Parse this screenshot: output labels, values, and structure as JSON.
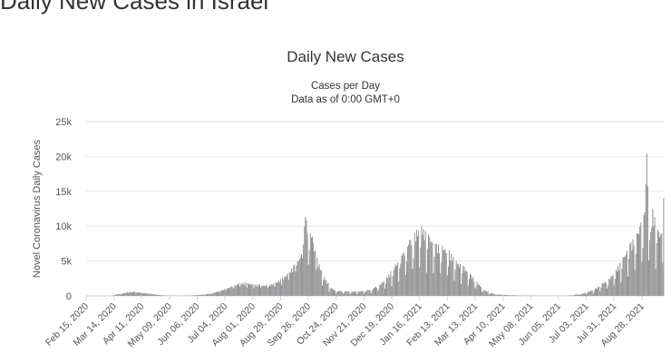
{
  "page": {
    "heading": "Daily New Cases in Israel"
  },
  "chart_data": {
    "type": "bar",
    "title": "Daily New Cases",
    "subtitle_line1": "Cases per Day",
    "subtitle_line2": "Data as of 0:00 GMT+0",
    "xlabel": "",
    "ylabel": "Novel Coronavirus Daily Cases",
    "ylim": [
      0,
      25000
    ],
    "y_ticks": [
      0,
      5000,
      10000,
      15000,
      20000,
      25000
    ],
    "y_tick_labels": [
      "0",
      "5k",
      "10k",
      "15k",
      "20k",
      "25k"
    ],
    "x_start": "2020-02-15",
    "x_end": "2021-09-20",
    "x_tick_labels": [
      "Feb 15, 2020",
      "Mar 14, 2020",
      "Apr 11, 2020",
      "May 09, 2020",
      "Jun 06, 2020",
      "Jul 04, 2020",
      "Aug 01, 2020",
      "Aug 29, 2020",
      "Sep 26, 2020",
      "Oct 24, 2020",
      "Nov 21, 2020",
      "Dec 19, 2020",
      "Jan 16, 2021",
      "Feb 13, 2021",
      "Mar 13, 2021",
      "Apr 10, 2021",
      "May 08, 2021",
      "Jun 05, 2021",
      "Jul 03, 2021",
      "Jul 31, 2021",
      "Aug 28, 2021"
    ],
    "series": [
      {
        "bar_color": "#8c8c8c",
        "points": [
          [
            "2020-03-14",
            150
          ],
          [
            "2020-03-21",
            300
          ],
          [
            "2020-03-28",
            550
          ],
          [
            "2020-04-04",
            600
          ],
          [
            "2020-04-11",
            450
          ],
          [
            "2020-04-18",
            350
          ],
          [
            "2020-04-25",
            200
          ],
          [
            "2020-05-02",
            80
          ],
          [
            "2020-05-16",
            20
          ],
          [
            "2020-05-30",
            60
          ],
          [
            "2020-06-06",
            120
          ],
          [
            "2020-06-13",
            200
          ],
          [
            "2020-06-20",
            350
          ],
          [
            "2020-06-27",
            650
          ],
          [
            "2020-07-04",
            1000
          ],
          [
            "2020-07-11",
            1400
          ],
          [
            "2020-07-18",
            1800
          ],
          [
            "2020-07-25",
            1900
          ],
          [
            "2020-08-01",
            1700
          ],
          [
            "2020-08-08",
            1600
          ],
          [
            "2020-08-15",
            1500
          ],
          [
            "2020-08-22",
            1800
          ],
          [
            "2020-08-29",
            2400
          ],
          [
            "2020-09-05",
            3200
          ],
          [
            "2020-09-12",
            4500
          ],
          [
            "2020-09-19",
            6000
          ],
          [
            "2020-09-23",
            11300
          ],
          [
            "2020-09-30",
            8500
          ],
          [
            "2020-10-03",
            6500
          ],
          [
            "2020-10-07",
            4500
          ],
          [
            "2020-10-14",
            2200
          ],
          [
            "2020-10-21",
            900
          ],
          [
            "2020-10-28",
            700
          ],
          [
            "2020-11-04",
            650
          ],
          [
            "2020-11-11",
            650
          ],
          [
            "2020-11-18",
            700
          ],
          [
            "2020-11-25",
            800
          ],
          [
            "2020-12-02",
            1200
          ],
          [
            "2020-12-09",
            1900
          ],
          [
            "2020-12-16",
            3100
          ],
          [
            "2020-12-23",
            4500
          ],
          [
            "2020-12-30",
            6000
          ],
          [
            "2021-01-06",
            8000
          ],
          [
            "2021-01-13",
            9500
          ],
          [
            "2021-01-18",
            10000
          ],
          [
            "2021-01-25",
            8800
          ],
          [
            "2021-02-01",
            7500
          ],
          [
            "2021-02-08",
            7200
          ],
          [
            "2021-02-15",
            6500
          ],
          [
            "2021-02-22",
            5000
          ],
          [
            "2021-03-01",
            4300
          ],
          [
            "2021-03-08",
            3200
          ],
          [
            "2021-03-15",
            2000
          ],
          [
            "2021-03-22",
            900
          ],
          [
            "2021-03-29",
            400
          ],
          [
            "2021-04-05",
            200
          ],
          [
            "2021-04-12",
            150
          ],
          [
            "2021-04-19",
            100
          ],
          [
            "2021-05-03",
            50
          ],
          [
            "2021-05-31",
            15
          ],
          [
            "2021-06-14",
            30
          ],
          [
            "2021-06-21",
            150
          ],
          [
            "2021-06-28",
            300
          ],
          [
            "2021-07-05",
            600
          ],
          [
            "2021-07-12",
            1000
          ],
          [
            "2021-07-19",
            1800
          ],
          [
            "2021-07-26",
            2500
          ],
          [
            "2021-08-02",
            3800
          ],
          [
            "2021-08-09",
            5500
          ],
          [
            "2021-08-16",
            7500
          ],
          [
            "2021-08-23",
            9000
          ],
          [
            "2021-08-27",
            10500
          ],
          [
            "2021-08-31",
            12000
          ],
          [
            "2021-09-02",
            20400
          ],
          [
            "2021-09-05",
            8000
          ],
          [
            "2021-09-08",
            12500
          ],
          [
            "2021-09-13",
            9500
          ],
          [
            "2021-09-17",
            9000
          ],
          [
            "2021-09-19",
            14000
          ]
        ]
      }
    ],
    "grid": true
  }
}
